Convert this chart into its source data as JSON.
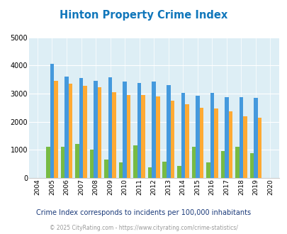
{
  "title": "Hinton Property Crime Index",
  "years": [
    2004,
    2005,
    2006,
    2007,
    2008,
    2009,
    2010,
    2011,
    2012,
    2013,
    2014,
    2015,
    2016,
    2017,
    2018,
    2019,
    2020
  ],
  "hinton": [
    0,
    1100,
    1100,
    1200,
    1000,
    650,
    550,
    1150,
    370,
    580,
    430,
    1100,
    550,
    960,
    1100,
    880,
    0
  ],
  "oklahoma": [
    0,
    4050,
    3600,
    3550,
    3450,
    3570,
    3420,
    3370,
    3420,
    3300,
    3030,
    2930,
    3020,
    2880,
    2870,
    2840,
    0
  ],
  "national": [
    0,
    3460,
    3360,
    3270,
    3230,
    3060,
    2960,
    2960,
    2890,
    2740,
    2620,
    2490,
    2460,
    2360,
    2200,
    2130,
    0
  ],
  "hinton_color": "#77bb44",
  "oklahoma_color": "#4499dd",
  "national_color": "#ffaa33",
  "bg_color": "#ddeef5",
  "ylim": [
    0,
    5000
  ],
  "yticks": [
    0,
    1000,
    2000,
    3000,
    4000,
    5000
  ],
  "bar_width": 0.27,
  "subtitle": "Crime Index corresponds to incidents per 100,000 inhabitants",
  "copyright": "© 2025 CityRating.com - https://www.cityrating.com/crime-statistics/",
  "title_color": "#1177bb",
  "subtitle_color": "#1a3a7a",
  "copyright_color": "#999999",
  "legend_color": "#1177bb"
}
